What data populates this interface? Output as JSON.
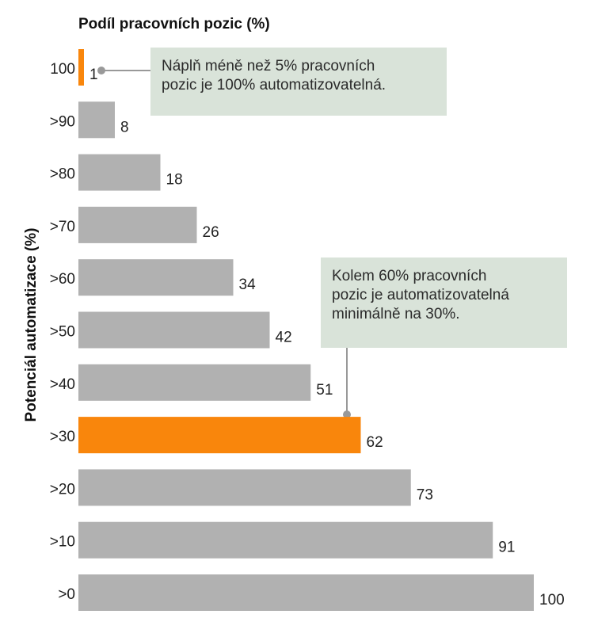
{
  "chart_data": {
    "type": "bar",
    "orientation": "horizontal",
    "title": "Podíl pracovních pozic (%)",
    "ylabel": "Potenciál automatizace (%)",
    "categories": [
      "100",
      ">90",
      ">80",
      ">70",
      ">60",
      ">50",
      ">40",
      ">30",
      ">20",
      ">10",
      ">0"
    ],
    "values": [
      1,
      8,
      18,
      26,
      34,
      42,
      51,
      62,
      73,
      91,
      100
    ],
    "value_labels": [
      "1",
      "8",
      "18",
      "26",
      "34",
      "42",
      "51",
      "62",
      "73",
      "91",
      "100"
    ],
    "highlighted": [
      "100",
      ">30"
    ],
    "xlim": [
      0,
      100
    ],
    "grid": false,
    "colors": {
      "bar": "#b1b1b1",
      "highlight": "#f9860c",
      "note_bg": "#d9e3d9",
      "leader": "#999999"
    },
    "annotations": [
      {
        "category": "100",
        "text": "Náplň méně než 5% pracovních\npozic je 100% automatizovatelná."
      },
      {
        "category": ">30",
        "text": "Kolem 60% pracovních\npozic je automatizovatelná\nminimálně na 30%."
      }
    ]
  }
}
